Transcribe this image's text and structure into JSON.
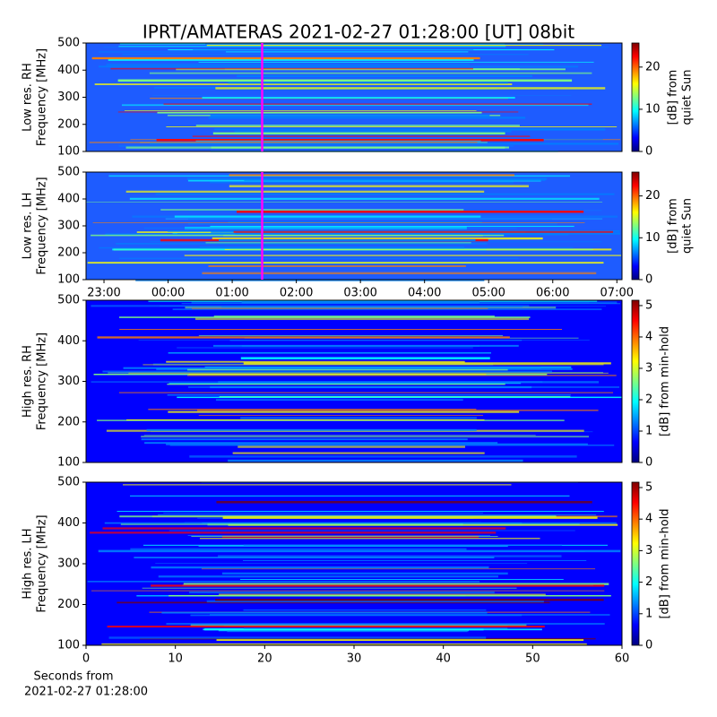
{
  "title": "IPRT/AMATERAS 2021-02-27 01:28:00 [UT]   08bit",
  "chart_data": [
    {
      "type": "heatmap",
      "colormap": "jet",
      "y_label": [
        "Low res. RH",
        "Frequency [MHz]"
      ],
      "xlim": [
        -1.28,
        7.08
      ],
      "ylim": [
        100,
        500
      ],
      "yticks": [
        100,
        200,
        300,
        400,
        500
      ],
      "vline": {
        "value": 1.467,
        "color": "#ff00ff"
      },
      "colorbar": {
        "label": [
          "[dB] from",
          "quiet Sun"
        ],
        "lim": [
          0,
          25.7
        ],
        "ticks": [
          0,
          10,
          20
        ]
      }
    },
    {
      "type": "heatmap",
      "colormap": "jet",
      "y_label": [
        "Low res. LH",
        "Frequency [MHz]"
      ],
      "xlim": [
        -1.28,
        7.08
      ],
      "xticks": [
        {
          "value": -1,
          "label": "23:00"
        },
        {
          "value": 0,
          "label": "00:00"
        },
        {
          "value": 1,
          "label": "01:00"
        },
        {
          "value": 2,
          "label": "02:00"
        },
        {
          "value": 3,
          "label": "03:00"
        },
        {
          "value": 4,
          "label": "04:00"
        },
        {
          "value": 5,
          "label": "05:00"
        },
        {
          "value": 6,
          "label": "06:00"
        },
        {
          "value": 7,
          "label": "07:00"
        }
      ],
      "ylim": [
        100,
        500
      ],
      "yticks": [
        100,
        200,
        300,
        400,
        500
      ],
      "vline": {
        "value": 1.467,
        "color": "#ff00ff"
      },
      "colorbar": {
        "label": [
          "[dB] from",
          "quiet Sun"
        ],
        "lim": [
          0,
          25.7
        ],
        "ticks": [
          0,
          10,
          20
        ]
      }
    },
    {
      "type": "heatmap",
      "colormap": "jet",
      "y_label": [
        "High res. RH",
        "Frequency [MHz]"
      ],
      "xlim": [
        0,
        60
      ],
      "ylim": [
        100,
        500
      ],
      "yticks": [
        100,
        200,
        300,
        400,
        500
      ],
      "colorbar": {
        "label": [
          "[dB] from min-hold"
        ],
        "lim": [
          0,
          5.17
        ],
        "ticks": [
          0,
          1,
          2,
          3,
          4,
          5
        ]
      }
    },
    {
      "type": "heatmap",
      "colormap": "jet",
      "y_label": [
        "High res. LH",
        "Frequency [MHz]"
      ],
      "xlim": [
        0,
        60
      ],
      "xticks": [
        0,
        10,
        20,
        30,
        40,
        50,
        60
      ],
      "x_label": [
        "Seconds from",
        "2021-02-27 01:28:00"
      ],
      "ylim": [
        100,
        500
      ],
      "yticks": [
        100,
        200,
        300,
        400,
        500
      ],
      "colorbar": {
        "label": [
          "[dB] from min-hold"
        ],
        "lim": [
          0,
          5.17
        ],
        "ticks": [
          0,
          1,
          2,
          3,
          4,
          5
        ]
      }
    }
  ]
}
